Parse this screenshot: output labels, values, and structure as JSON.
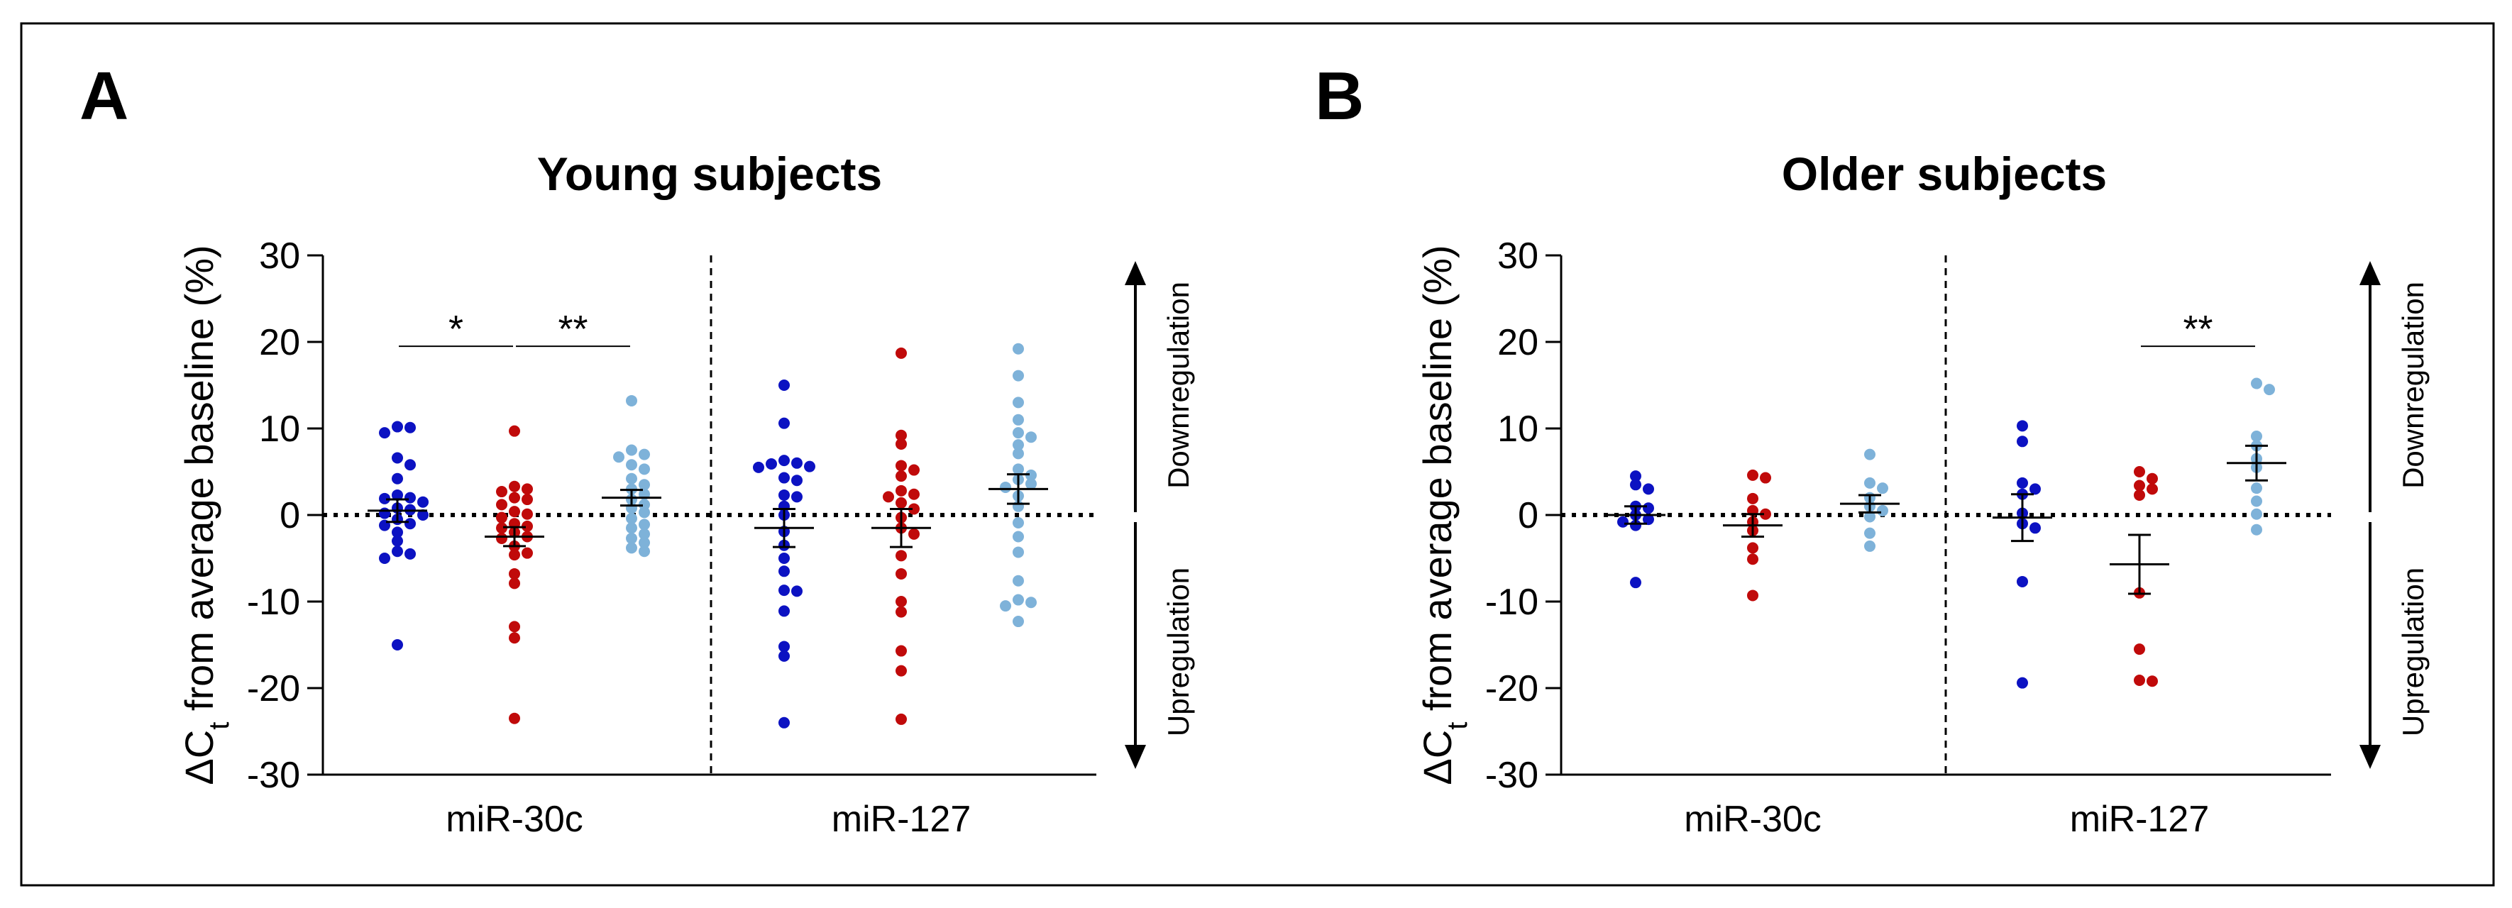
{
  "colors": {
    "group1": "#0c12c2",
    "group2": "#c00a0a",
    "group3": "#7eb2d9",
    "axis": "#000000"
  },
  "chart_data": [
    {
      "type": "scatter",
      "panel_letter": "A",
      "title": "Young subjects",
      "ylabel": "ΔCt from average baseline (%)",
      "ylim": [
        -30,
        30
      ],
      "yticks": [
        30,
        20,
        10,
        0,
        -10,
        -20,
        -30
      ],
      "categories": [
        "miR-30c",
        "miR-127"
      ],
      "side_labels": {
        "up": "Downregulation",
        "down": "Upregulation"
      },
      "significance": [
        {
          "category": "miR-30c",
          "from": 0,
          "to": 1,
          "label": "*",
          "y": 19.5
        },
        {
          "category": "miR-30c",
          "from": 1,
          "to": 2,
          "label": "**",
          "y": 19.5
        }
      ],
      "series": [
        {
          "name": "group1",
          "color": "#0c12c2",
          "points": {
            "miR-30c": [
              10.2,
              10.1,
              9.5,
              6.6,
              5.8,
              4.2,
              2.3,
              2.0,
              1.9,
              1.5,
              0.8,
              0.6,
              0.2,
              0,
              -0.5,
              -1.0,
              -1.2,
              -2.0,
              -3.0,
              -4.2,
              -5.0,
              -4.5,
              -15.0
            ],
            "miR-127": [
              15.0,
              10.6,
              6.3,
              6.0,
              5.9,
              5.6,
              5.5,
              4.3,
              4.0,
              2.3,
              2.1,
              1.0,
              0,
              -1.9,
              -3.5,
              -5.0,
              -6.5,
              -8.7,
              -8.8,
              -11.1,
              -15.2,
              -16.3,
              -24.0
            ]
          },
          "mean": {
            "miR-30c": 0.5,
            "miR-127": -1.5
          },
          "sem": {
            "miR-30c": 1.3,
            "miR-127": 2.2
          }
        },
        {
          "name": "group2",
          "color": "#c00a0a",
          "points": {
            "miR-30c": [
              9.7,
              3.3,
              3.0,
              2.7,
              2.0,
              1.8,
              1.2,
              0.4,
              0.1,
              -0.3,
              -1.0,
              -1.3,
              -1.5,
              -2.0,
              -2.5,
              -2.7,
              -3.6,
              -4.4,
              -4.6,
              -6.8,
              -7.9,
              -12.9,
              -14.2,
              -23.5
            ],
            "miR-127": [
              18.7,
              9.2,
              8.2,
              5.7,
              5.2,
              4.5,
              2.8,
              2.4,
              2.1,
              1.4,
              0.7,
              -0.3,
              -1.5,
              -2.2,
              -4.7,
              -6.8,
              -10.0,
              -11.2,
              -15.7,
              -18.0,
              -23.6
            ]
          },
          "mean": {
            "miR-30c": -2.5,
            "miR-127": -1.5
          },
          "sem": {
            "miR-30c": 1.1,
            "miR-127": 2.2
          }
        },
        {
          "name": "group3",
          "color": "#7eb2d9",
          "points": {
            "miR-30c": [
              13.2,
              7.5,
              7.0,
              6.7,
              5.8,
              5.3,
              4.2,
              3.5,
              3.0,
              2.4,
              1.8,
              1.2,
              0.8,
              0.3,
              -0.4,
              -1.1,
              -1.5,
              -2.2,
              -2.7,
              -3.2,
              -3.8,
              -4.2
            ],
            "miR-127": [
              19.2,
              16.1,
              13.0,
              11.0,
              9.5,
              9.0,
              8.1,
              7.1,
              5.3,
              4.6,
              4.1,
              3.6,
              3.2,
              2.2,
              1.0,
              -0.9,
              -2.5,
              -4.3,
              -7.6,
              -9.8,
              -10.1,
              -10.5,
              -12.3
            ]
          },
          "mean": {
            "miR-30c": 2.0,
            "miR-127": 3.0
          },
          "sem": {
            "miR-30c": 0.9,
            "miR-127": 1.7
          }
        }
      ]
    },
    {
      "type": "scatter",
      "panel_letter": "B",
      "title": "Older subjects",
      "ylabel": "ΔCt from average baseline (%)",
      "ylim": [
        -30,
        30
      ],
      "yticks": [
        30,
        20,
        10,
        0,
        -10,
        -20,
        -30
      ],
      "categories": [
        "miR-30c",
        "miR-127"
      ],
      "side_labels": {
        "up": "Downregulation",
        "down": "Upregulation"
      },
      "significance": [
        {
          "category": "miR-127",
          "from": 1,
          "to": 2,
          "label": "**",
          "y": 19.5
        }
      ],
      "series": [
        {
          "name": "group1",
          "color": "#0c12c2",
          "points": {
            "miR-30c": [
              4.5,
              3.5,
              3.0,
              1.0,
              0.8,
              0,
              -0.5,
              -0.8,
              -1.2,
              -7.8
            ],
            "miR-127": [
              10.3,
              8.5,
              3.7,
              3.0,
              2.4,
              0.2,
              -1.0,
              -1.5,
              -7.7,
              -19.4
            ]
          },
          "mean": {
            "miR-30c": 0.0,
            "miR-127": -0.3
          },
          "sem": {
            "miR-30c": 1.0,
            "miR-127": 2.7
          }
        },
        {
          "name": "group2",
          "color": "#c00a0a",
          "points": {
            "miR-30c": [
              4.6,
              4.3,
              1.9,
              0.5,
              0.1,
              -0.8,
              -1.8,
              -3.8,
              -5.1,
              -9.3
            ],
            "miR-127": [
              5.0,
              4.2,
              3.4,
              3.0,
              2.3,
              -9.0,
              -15.5,
              -19.1,
              -19.2
            ]
          },
          "mean": {
            "miR-30c": -1.2,
            "miR-127": -5.7
          },
          "sem": {
            "miR-30c": 1.3,
            "miR-127": 3.4
          }
        },
        {
          "name": "group3",
          "color": "#7eb2d9",
          "points": {
            "miR-30c": [
              7.0,
              3.7,
              3.1,
              2.0,
              1.0,
              0.5,
              -0.2,
              -2.1,
              -3.6
            ],
            "miR-127": [
              15.2,
              14.5,
              9.1,
              8.0,
              6.5,
              5.5,
              3.1,
              1.6,
              0.1,
              -1.7
            ]
          },
          "mean": {
            "miR-30c": 1.3,
            "miR-127": 6.0
          },
          "sem": {
            "miR-30c": 1.0,
            "miR-127": 2.0
          }
        }
      ]
    }
  ]
}
